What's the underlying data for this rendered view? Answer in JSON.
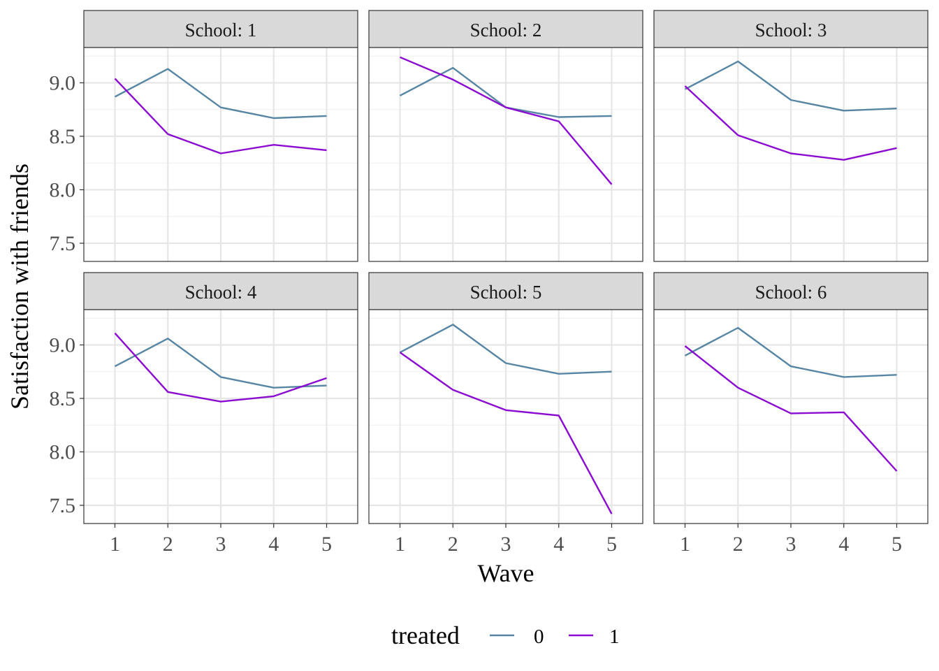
{
  "chart_data": {
    "type": "line",
    "facet_prefix": "School: ",
    "xlabel": "Wave",
    "ylabel": "Satisfaction with friends",
    "x": [
      1,
      2,
      3,
      4,
      5
    ],
    "ylim": [
      7.33,
      9.33
    ],
    "yticks": [
      "7.5",
      "8.0",
      "8.5",
      "9.0"
    ],
    "ytick_values": [
      7.5,
      8.0,
      8.5,
      9.0
    ],
    "grid": true,
    "legend": {
      "title": "treated",
      "position": "bottom",
      "entries": [
        {
          "label": "0",
          "color": "#5686a3"
        },
        {
          "label": "1",
          "color": "#8b0bd1"
        }
      ]
    },
    "panels": [
      {
        "strip": "School: 1",
        "series": [
          {
            "name": "0",
            "values": [
              8.87,
              9.13,
              8.77,
              8.67,
              8.69
            ]
          },
          {
            "name": "1",
            "values": [
              9.04,
              8.52,
              8.34,
              8.42,
              8.37
            ]
          }
        ]
      },
      {
        "strip": "School: 2",
        "series": [
          {
            "name": "0",
            "values": [
              8.88,
              9.14,
              8.77,
              8.68,
              8.69
            ]
          },
          {
            "name": "1",
            "values": [
              9.24,
              9.03,
              8.77,
              8.64,
              8.05
            ]
          }
        ]
      },
      {
        "strip": "School: 3",
        "series": [
          {
            "name": "0",
            "values": [
              8.94,
              9.2,
              8.84,
              8.74,
              8.76
            ]
          },
          {
            "name": "1",
            "values": [
              8.97,
              8.51,
              8.34,
              8.28,
              8.39
            ]
          }
        ]
      },
      {
        "strip": "School: 4",
        "series": [
          {
            "name": "0",
            "values": [
              8.8,
              9.06,
              8.7,
              8.6,
              8.62
            ]
          },
          {
            "name": "1",
            "values": [
              9.11,
              8.56,
              8.47,
              8.52,
              8.69
            ]
          }
        ]
      },
      {
        "strip": "School: 5",
        "series": [
          {
            "name": "0",
            "values": [
              8.93,
              9.19,
              8.83,
              8.73,
              8.75
            ]
          },
          {
            "name": "1",
            "values": [
              8.93,
              8.58,
              8.39,
              8.34,
              7.42
            ]
          }
        ]
      },
      {
        "strip": "School: 6",
        "series": [
          {
            "name": "0",
            "values": [
              8.9,
              9.16,
              8.8,
              8.7,
              8.72
            ]
          },
          {
            "name": "1",
            "values": [
              8.99,
              8.6,
              8.36,
              8.37,
              7.82
            ]
          }
        ]
      }
    ]
  }
}
